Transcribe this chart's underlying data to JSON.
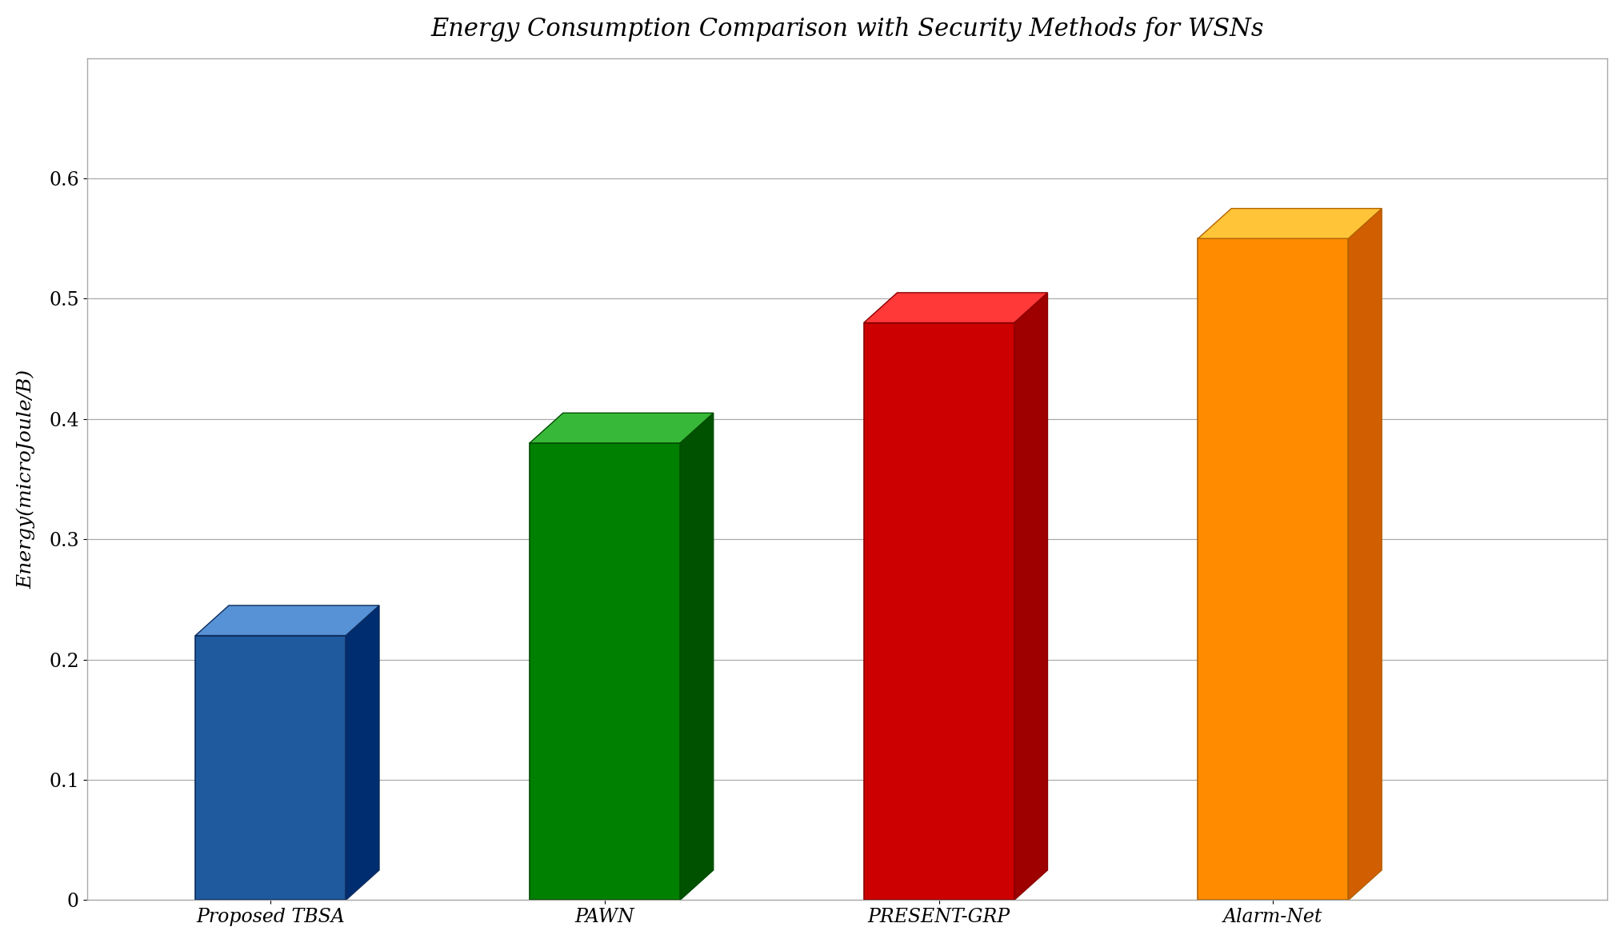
{
  "categories": [
    "Proposed TBSA",
    "PAWN",
    "PRESENT-GRP",
    "Alarm-Net"
  ],
  "values": [
    0.22,
    0.38,
    0.48,
    0.55
  ],
  "bar_colors": [
    "#1f5a9e",
    "#008000",
    "#cc0000",
    "#ff8c00"
  ],
  "bar_edge_colors": [
    "#0d2d5e",
    "#004d00",
    "#8b0000",
    "#b36200"
  ],
  "title": "Energy Consumption Comparison with Security Methods for WSNs",
  "ylabel": "Energy(microJoule/B)",
  "ylim": [
    0,
    0.7
  ],
  "yticks": [
    0,
    0.1,
    0.2,
    0.3,
    0.4,
    0.5,
    0.6
  ],
  "title_fontsize": 22,
  "label_fontsize": 18,
  "tick_fontsize": 17,
  "background_color": "#ffffff",
  "grid_color": "#aaaaaa",
  "bar_width": 0.45,
  "figure_border_color": "#888888"
}
